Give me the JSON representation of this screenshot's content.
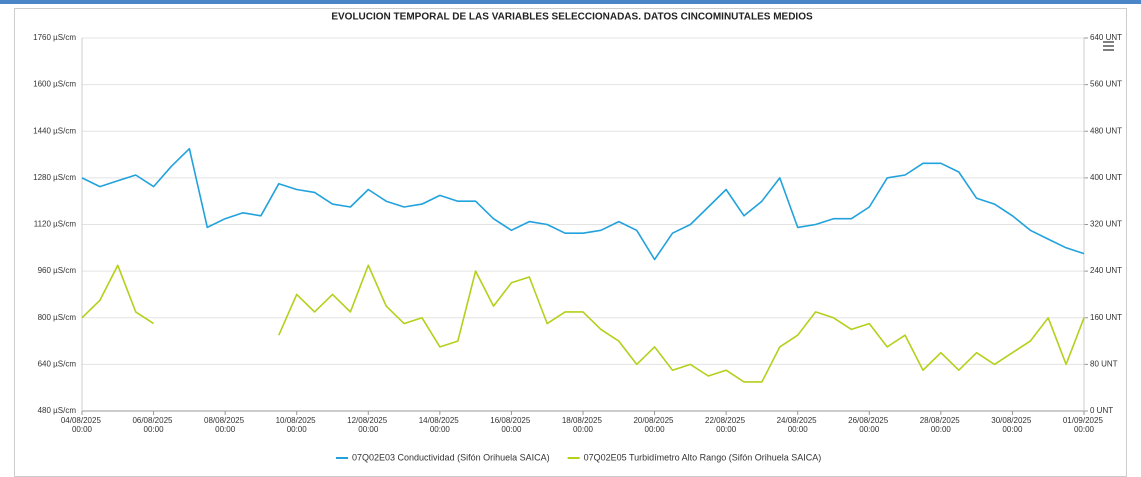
{
  "chart_data": {
    "type": "line",
    "title": "EVOLUCION TEMPORAL DE LAS VARIABLES SELECCIONADAS. DATOS CINCOMINUTALES MEDIOS",
    "x": [
      "04/08/2025 00:00",
      "04/08/2025 12:00",
      "05/08/2025 00:00",
      "05/08/2025 12:00",
      "06/08/2025 00:00",
      "06/08/2025 12:00",
      "07/08/2025 00:00",
      "07/08/2025 12:00",
      "08/08/2025 00:00",
      "08/08/2025 12:00",
      "09/08/2025 00:00",
      "09/08/2025 12:00",
      "10/08/2025 00:00",
      "10/08/2025 12:00",
      "11/08/2025 00:00",
      "11/08/2025 12:00",
      "12/08/2025 00:00",
      "12/08/2025 12:00",
      "13/08/2025 00:00",
      "13/08/2025 12:00",
      "14/08/2025 00:00",
      "14/08/2025 12:00",
      "15/08/2025 00:00",
      "15/08/2025 12:00",
      "16/08/2025 00:00",
      "16/08/2025 12:00",
      "17/08/2025 00:00",
      "17/08/2025 12:00",
      "18/08/2025 00:00",
      "18/08/2025 12:00",
      "19/08/2025 00:00",
      "19/08/2025 12:00",
      "20/08/2025 00:00",
      "20/08/2025 12:00",
      "21/08/2025 00:00",
      "21/08/2025 12:00",
      "22/08/2025 00:00",
      "22/08/2025 12:00",
      "23/08/2025 00:00",
      "23/08/2025 12:00",
      "24/08/2025 00:00",
      "24/08/2025 12:00",
      "25/08/2025 00:00",
      "25/08/2025 12:00",
      "26/08/2025 00:00",
      "26/08/2025 12:00",
      "27/08/2025 00:00",
      "27/08/2025 12:00",
      "28/08/2025 00:00",
      "28/08/2025 12:00",
      "29/08/2025 00:00",
      "29/08/2025 12:00",
      "30/08/2025 00:00",
      "30/08/2025 12:00",
      "31/08/2025 00:00",
      "31/08/2025 12:00",
      "01/09/2025 00:00"
    ],
    "series": [
      {
        "name": "07Q02E03 Conductividad (Sifón Orihuela SAICA)",
        "color": "#22a2dd",
        "values": [
          1280,
          1250,
          1270,
          1290,
          1250,
          1320,
          1380,
          1110,
          1140,
          1160,
          1150,
          1260,
          1240,
          1230,
          1190,
          1180,
          1240,
          1200,
          1180,
          1190,
          1220,
          1200,
          1200,
          1140,
          1100,
          1130,
          1120,
          1090,
          1090,
          1100,
          1130,
          1100,
          1000,
          1090,
          1120,
          1180,
          1240,
          1150,
          1200,
          1280,
          1110,
          1120,
          1140,
          1140,
          1180,
          1280,
          1290,
          1330,
          1330,
          1300,
          1210,
          1190,
          1150,
          1100,
          1070,
          1040,
          1020
        ]
      },
      {
        "name": "07Q02E05 Turbidímetro Alto Rango (Sifón Orihuela SAICA)",
        "color": "#b6cf1b",
        "axis": "y2",
        "values": [
          160,
          190,
          250,
          170,
          150,
          null,
          null,
          null,
          null,
          null,
          null,
          130,
          200,
          170,
          200,
          170,
          250,
          180,
          150,
          160,
          110,
          120,
          240,
          180,
          220,
          230,
          150,
          170,
          170,
          140,
          120,
          80,
          110,
          70,
          80,
          60,
          70,
          50,
          50,
          110,
          130,
          170,
          160,
          140,
          150,
          110,
          130,
          70,
          100,
          70,
          100,
          80,
          100,
          120,
          160,
          80,
          160
        ]
      }
    ],
    "xlim": [
      "04/08/2025 00:00",
      "01/09/2025 00:00"
    ],
    "xticks": [
      "04/08/2025 00:00",
      "06/08/2025 00:00",
      "08/08/2025 00:00",
      "10/08/2025 00:00",
      "12/08/2025 00:00",
      "14/08/2025 00:00",
      "16/08/2025 00:00",
      "18/08/2025 00:00",
      "20/08/2025 00:00",
      "22/08/2025 00:00",
      "24/08/2025 00:00",
      "26/08/2025 00:00",
      "28/08/2025 00:00",
      "30/08/2025 00:00",
      "01/09/2025 00:00"
    ],
    "ylim": [
      480,
      1760
    ],
    "yticks": [
      {
        "value": 480,
        "label": "480 µS/cm"
      },
      {
        "value": 640,
        "label": "640 µS/cm"
      },
      {
        "value": 800,
        "label": "800 µS/cm"
      },
      {
        "value": 960,
        "label": "960 µS/cm"
      },
      {
        "value": 1120,
        "label": "1120 µS/cm"
      },
      {
        "value": 1280,
        "label": "1280 µS/cm"
      },
      {
        "value": 1440,
        "label": "1440 µS/cm"
      },
      {
        "value": 1600,
        "label": "1600 µS/cm"
      },
      {
        "value": 1760,
        "label": "1760 µS/cm"
      }
    ],
    "y2lim": [
      0,
      640
    ],
    "y2ticks": [
      {
        "value": 0,
        "label": "0 UNT"
      },
      {
        "value": 80,
        "label": "80 UNT"
      },
      {
        "value": 160,
        "label": "160 UNT"
      },
      {
        "value": 240,
        "label": "240 UNT"
      },
      {
        "value": 320,
        "label": "320 UNT"
      },
      {
        "value": 400,
        "label": "400 UNT"
      },
      {
        "value": 480,
        "label": "480 UNT"
      },
      {
        "value": 560,
        "label": "560 UNT"
      },
      {
        "value": 640,
        "label": "640 UNT"
      }
    ],
    "grid": true
  }
}
